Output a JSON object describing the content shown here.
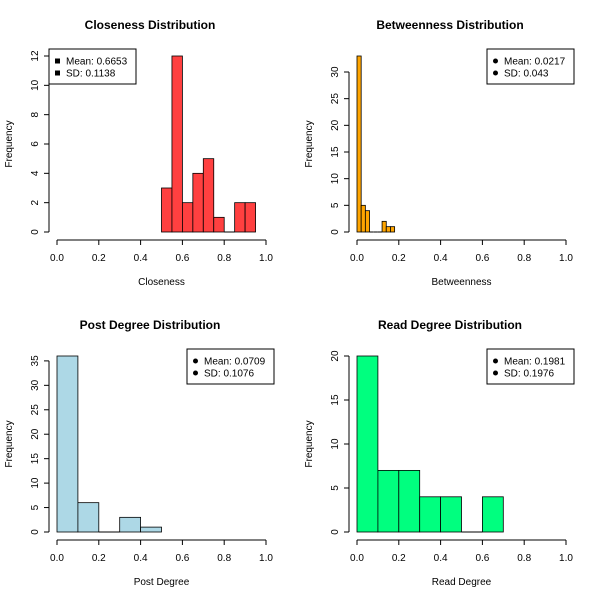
{
  "chart_data": [
    {
      "type": "bar",
      "title": "Closeness Distribution",
      "xlabel": "Closeness",
      "ylabel": "Frequency",
      "xlim": [
        0,
        1
      ],
      "ylim": [
        0,
        12
      ],
      "xticks": [
        "0.0",
        "0.2",
        "0.4",
        "0.6",
        "0.8",
        "1.0"
      ],
      "yticks": [
        "0",
        "2",
        "4",
        "6",
        "8",
        "10",
        "12"
      ],
      "ytick_step": 2,
      "bin_width": 0.05,
      "bin_starts": [
        0.5,
        0.55,
        0.6,
        0.65,
        0.7,
        0.75,
        0.8,
        0.85,
        0.9
      ],
      "values": [
        3,
        12,
        2,
        4,
        5,
        1,
        0,
        2,
        2
      ],
      "color": "#FF4040",
      "legend": {
        "position": "top-left",
        "marker": "square",
        "items": [
          "Mean: 0.6653",
          "SD: 0.1138"
        ]
      }
    },
    {
      "type": "bar",
      "title": "Betweenness Distribution",
      "xlabel": "Betweenness",
      "ylabel": "Frequency",
      "xlim": [
        0,
        1
      ],
      "ylim": [
        0,
        33
      ],
      "xticks": [
        "0.0",
        "0.2",
        "0.4",
        "0.6",
        "0.8",
        "1.0"
      ],
      "yticks": [
        "0",
        "5",
        "10",
        "15",
        "20",
        "25",
        "30"
      ],
      "ytick_step": 5,
      "bin_width": 0.02,
      "bin_starts": [
        0,
        0.02,
        0.04,
        0.06,
        0.08,
        0.1,
        0.12,
        0.14,
        0.16
      ],
      "values": [
        33,
        5,
        4,
        0,
        0,
        0,
        2,
        1,
        1
      ],
      "color": "#FFA500",
      "legend": {
        "position": "top-right",
        "marker": "dot",
        "items": [
          "Mean: 0.0217",
          "SD: 0.043"
        ]
      }
    },
    {
      "type": "bar",
      "title": "Post Degree Distribution",
      "xlabel": "Post Degree",
      "ylabel": "Frequency",
      "xlim": [
        0,
        1
      ],
      "ylim": [
        0,
        36
      ],
      "xticks": [
        "0.0",
        "0.2",
        "0.4",
        "0.6",
        "0.8",
        "1.0"
      ],
      "yticks": [
        "0",
        "5",
        "10",
        "15",
        "20",
        "25",
        "30",
        "35"
      ],
      "ytick_step": 5,
      "bin_width": 0.1,
      "bin_starts": [
        0,
        0.1,
        0.2,
        0.3,
        0.4
      ],
      "values": [
        36,
        6,
        0,
        3,
        1
      ],
      "color": "#ADD8E6",
      "legend": {
        "position": "top-right",
        "marker": "dot",
        "items": [
          "Mean: 0.0709",
          "SD: 0.1076"
        ]
      }
    },
    {
      "type": "bar",
      "title": "Read Degree Distribution",
      "xlabel": "Read Degree",
      "ylabel": "Frequency",
      "xlim": [
        0,
        1
      ],
      "ylim": [
        0,
        20
      ],
      "xticks": [
        "0.0",
        "0.2",
        "0.4",
        "0.6",
        "0.8",
        "1.0"
      ],
      "yticks": [
        "0",
        "5",
        "10",
        "15",
        "20"
      ],
      "ytick_step": 5,
      "bin_width": 0.1,
      "bin_starts": [
        0,
        0.1,
        0.2,
        0.3,
        0.4,
        0.5,
        0.6
      ],
      "values": [
        20,
        7,
        7,
        4,
        4,
        0,
        4
      ],
      "color": "#00FF7F",
      "legend": {
        "position": "top-right",
        "marker": "dot",
        "items": [
          "Mean: 0.1981",
          "SD: 0.1976"
        ]
      }
    }
  ]
}
